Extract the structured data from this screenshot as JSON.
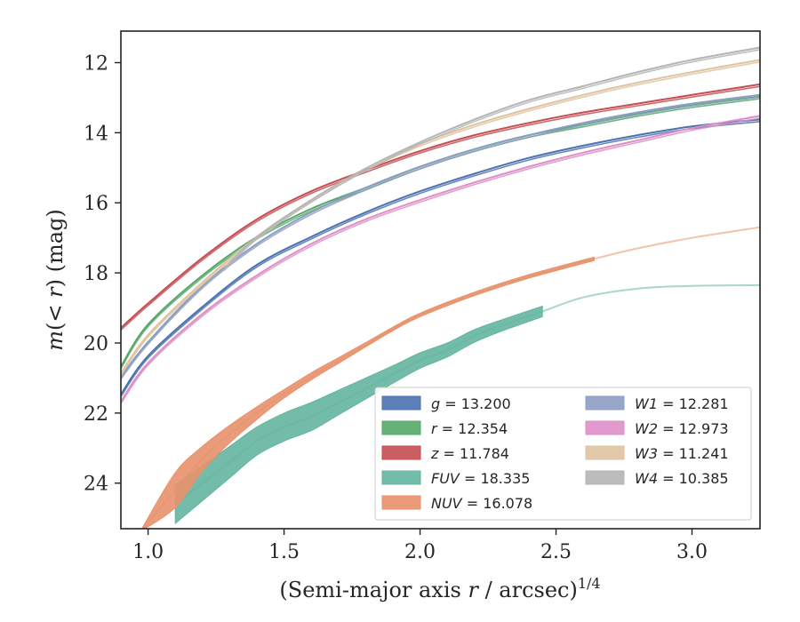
{
  "chart_data": {
    "type": "line",
    "xlabel": "(Semi-major axis r / arcsec)^1/4",
    "ylabel": "m(< r) (mag)",
    "xlim": [
      0.9,
      3.25
    ],
    "ylim": [
      25.3,
      11.1
    ],
    "y_inverted": true,
    "grid": false,
    "legend_placement": "lower-right",
    "x_ticks": [
      "1.0",
      "1.5",
      "2.0",
      "2.5",
      "3.0"
    ],
    "y_ticks": [
      "12",
      "14",
      "16",
      "18",
      "20",
      "22",
      "24"
    ],
    "series": [
      {
        "name": "g = 13.200",
        "band": "g",
        "value": "13.200",
        "color": "#4c72b0",
        "x": [
          0.9,
          1.0,
          1.2,
          1.4,
          1.6,
          1.8,
          2.0,
          2.2,
          2.4,
          2.6,
          2.8,
          3.0,
          3.25
        ],
        "y": [
          21.5,
          20.4,
          19.0,
          17.8,
          17.0,
          16.3,
          15.7,
          15.2,
          14.75,
          14.4,
          14.1,
          13.85,
          13.65
        ]
      },
      {
        "name": "r = 12.354",
        "band": "r",
        "value": "12.354",
        "color": "#55a868",
        "x": [
          0.9,
          1.0,
          1.2,
          1.4,
          1.6,
          1.8,
          2.0,
          2.2,
          2.4,
          2.6,
          2.8,
          3.0,
          3.25
        ],
        "y": [
          20.7,
          19.5,
          18.1,
          17.0,
          16.2,
          15.6,
          15.0,
          14.5,
          14.1,
          13.8,
          13.5,
          13.25,
          13.0
        ]
      },
      {
        "name": "z = 11.784",
        "band": "z",
        "value": "11.784",
        "color": "#c44e52",
        "x": [
          0.9,
          1.0,
          1.2,
          1.4,
          1.6,
          1.8,
          2.0,
          2.2,
          2.4,
          2.6,
          2.8,
          3.0,
          3.25
        ],
        "y": [
          19.6,
          18.9,
          17.6,
          16.5,
          15.7,
          15.1,
          14.55,
          14.1,
          13.75,
          13.45,
          13.2,
          12.95,
          12.65
        ]
      },
      {
        "name": "FUV = 18.335",
        "band": "FUV",
        "value": "18.335",
        "color": "#64b5a0",
        "x": [
          1.1,
          1.2,
          1.3,
          1.4,
          1.5,
          1.6,
          1.7,
          1.8,
          1.9,
          2.0,
          2.1,
          2.2,
          2.3,
          2.45,
          2.6,
          2.8,
          3.0,
          3.25
        ],
        "y": [
          24.6,
          24.0,
          23.4,
          22.8,
          22.4,
          22.1,
          21.7,
          21.3,
          20.9,
          20.5,
          20.2,
          19.8,
          19.5,
          19.1,
          18.7,
          18.45,
          18.37,
          18.35
        ],
        "band_half_width": [
          0.55,
          0.5,
          0.45,
          0.4,
          0.4,
          0.4,
          0.35,
          0.3,
          0.25,
          0.22,
          0.2,
          0.18,
          0.16,
          0.15,
          0,
          0,
          0,
          0
        ],
        "band_end_x": 2.45
      },
      {
        "name": "NUV = 16.078",
        "band": "NUV",
        "value": "16.078",
        "color": "#e8916b",
        "x": [
          0.98,
          1.1,
          1.2,
          1.3,
          1.4,
          1.5,
          1.6,
          1.7,
          1.8,
          1.9,
          2.0,
          2.2,
          2.4,
          2.64,
          2.8,
          3.0,
          3.25
        ],
        "y": [
          25.3,
          24.2,
          23.3,
          22.6,
          22.0,
          21.45,
          20.95,
          20.5,
          20.05,
          19.6,
          19.2,
          18.6,
          18.1,
          17.6,
          17.3,
          17.0,
          16.7
        ],
        "band_half_width": [
          0,
          0.5,
          0.35,
          0.25,
          0.18,
          0.12,
          0.1,
          0.08,
          0.06,
          0.05,
          0.05,
          0.05,
          0.05,
          0.05,
          0,
          0,
          0
        ],
        "band_end_x": 2.64
      },
      {
        "name": "W1 = 12.281",
        "band": "W1",
        "value": "12.281",
        "color": "#8c9dc3",
        "x": [
          0.9,
          1.0,
          1.2,
          1.4,
          1.6,
          1.8,
          2.0,
          2.2,
          2.4,
          2.6,
          2.8,
          3.0,
          3.25
        ],
        "y": [
          21.0,
          20.0,
          18.4,
          17.2,
          16.3,
          15.6,
          15.0,
          14.5,
          14.1,
          13.75,
          13.45,
          13.2,
          12.95
        ]
      },
      {
        "name": "W2 = 12.973",
        "band": "W2",
        "value": "12.973",
        "color": "#dd8fc8",
        "x": [
          0.9,
          1.0,
          1.2,
          1.4,
          1.6,
          1.8,
          2.0,
          2.2,
          2.4,
          2.6,
          2.8,
          3.0,
          3.25
        ],
        "y": [
          21.7,
          20.6,
          19.2,
          18.1,
          17.2,
          16.5,
          15.95,
          15.45,
          15.0,
          14.6,
          14.25,
          13.9,
          13.55
        ]
      },
      {
        "name": "W3 = 11.241",
        "band": "W3",
        "value": "11.241",
        "color": "#dfc39e",
        "x": [
          0.9,
          1.0,
          1.2,
          1.4,
          1.6,
          1.8,
          2.0,
          2.2,
          2.4,
          2.6,
          2.8,
          3.0,
          3.25
        ],
        "y": [
          20.9,
          19.8,
          18.3,
          17.0,
          15.95,
          15.05,
          14.35,
          13.8,
          13.35,
          12.95,
          12.6,
          12.3,
          11.95
        ]
      },
      {
        "name": "W4 = 10.385",
        "band": "W4",
        "value": "10.385",
        "color": "#b5b5b5",
        "x": [
          1.28,
          1.4,
          1.6,
          1.8,
          2.0,
          2.2,
          2.4,
          2.6,
          2.8,
          3.0,
          3.25
        ],
        "y": [
          17.9,
          17.0,
          15.95,
          15.05,
          14.3,
          13.65,
          13.1,
          12.7,
          12.3,
          11.95,
          11.6
        ]
      }
    ]
  }
}
